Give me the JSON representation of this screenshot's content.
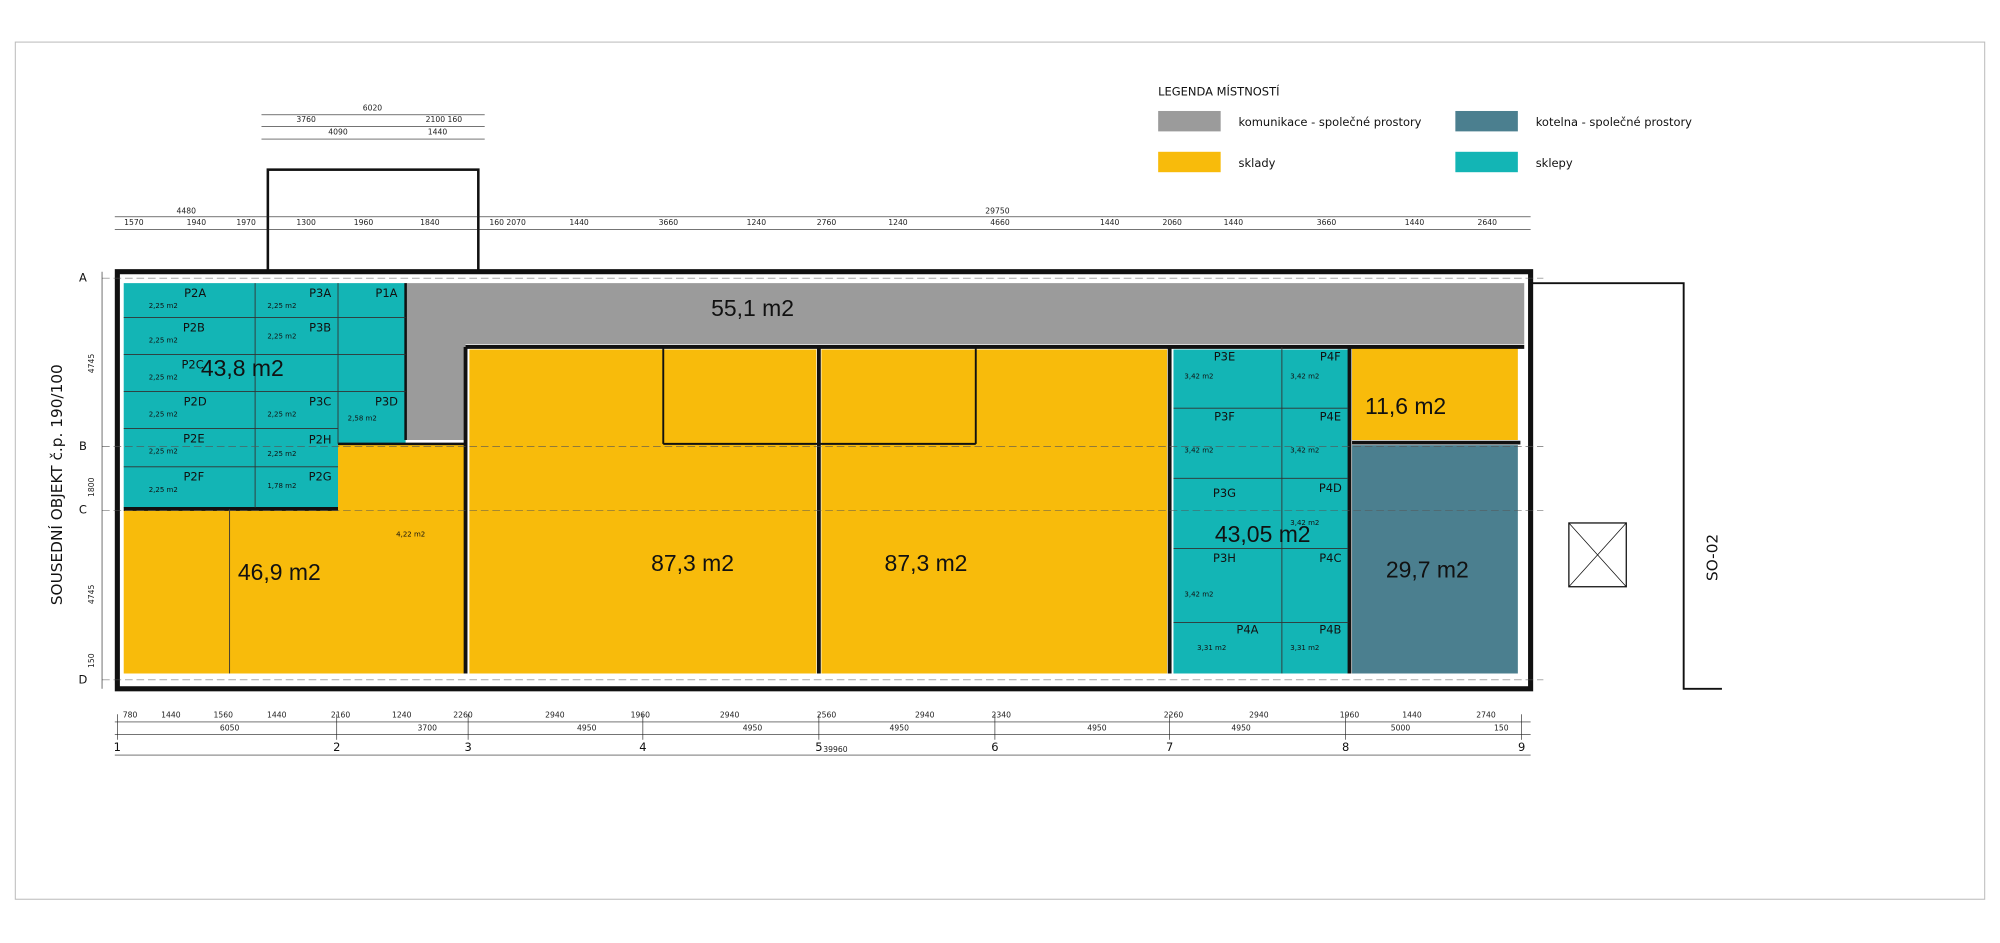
{
  "legend": {
    "title": "LEGENDA MÍSTNOSTÍ",
    "items": [
      {
        "label": "komunikace - společné prostory",
        "color": "#9b9b9b"
      },
      {
        "label": "kotelna - společné prostory",
        "color": "#4b7f8f"
      },
      {
        "label": "sklady",
        "color": "#f8bb0b"
      },
      {
        "label": "sklepy",
        "color": "#13b5b5"
      }
    ]
  },
  "rooms": [
    {
      "area": "43,8 m2",
      "color": "#13b5b5"
    },
    {
      "area": "55,1 m2",
      "color": "#9b9b9b"
    },
    {
      "area": "11,6 m2",
      "color": "#f8bb0b"
    },
    {
      "area": "46,9 m2",
      "color": "#f8bb0b"
    },
    {
      "area": "87,3 m2",
      "color": "#f8bb0b"
    },
    {
      "area": "87,3 m2",
      "color": "#f8bb0b"
    },
    {
      "area": "43,05 m2",
      "color": "#13b5b5"
    },
    {
      "area": "29,7 m2",
      "color": "#4b7f8f"
    }
  ],
  "room_codes": [
    "P2A",
    "P3A",
    "P1A",
    "P2B",
    "P3B",
    "P2C",
    "P2D",
    "P3C",
    "P3D",
    "P2E",
    "P2H",
    "P2F",
    "P2G",
    "P3E",
    "P4F",
    "P3F",
    "P4E",
    "P3G",
    "P4D",
    "P3H",
    "P4C",
    "P4A",
    "P4B"
  ],
  "small_areas": [
    "2,25 m2",
    "2,25 m2",
    "2,25 m2",
    "2,25 m2",
    "2,25 m2",
    "2,25 m2",
    "2,25 m2",
    "2,25 m2",
    "2,58 m2",
    "2,25 m2",
    "2,25 m2",
    "1,78 m2",
    "3,42 m2",
    "3,42 m2",
    "3,42 m2",
    "3,42 m2",
    "3,42 m2",
    "3,42 m2",
    "3,31 m2",
    "3,31 m2",
    "4,22 m2"
  ],
  "axes": {
    "rows": [
      "A",
      "B",
      "C",
      "D"
    ],
    "columns": [
      "1",
      "2",
      "3",
      "4",
      "5",
      "6",
      "7",
      "8",
      "9"
    ]
  },
  "side_labels": [
    "SOUSEDNÍ OBJEKT č.p. 190/100",
    "SO-02"
  ],
  "dimensions": {
    "upper": [
      "6020",
      "3760",
      "2100 160",
      "4090",
      "1440",
      "4480",
      "29750"
    ],
    "top": [
      "1570",
      "1940",
      "1970",
      "1300",
      "1960",
      "1840",
      "160 2070",
      "1440",
      "3660",
      "1240",
      "2760",
      "1240",
      "4660",
      "1440",
      "2060",
      "1440",
      "3660",
      "1440",
      "2640"
    ],
    "bottom": [
      "780",
      "1440",
      "1560",
      "1440",
      "2160",
      "1240",
      "2260",
      "2940",
      "1960",
      "2940",
      "2560",
      "2940",
      "2340",
      "2260",
      "2940",
      "1960",
      "1440",
      "2740"
    ],
    "bottom2": [
      "6050",
      "3700",
      "4950",
      "4950",
      "4950",
      "4950",
      "4950",
      "5000",
      "150"
    ],
    "total": "39960",
    "left": [
      "4745",
      "1800",
      "4745",
      "150"
    ]
  }
}
